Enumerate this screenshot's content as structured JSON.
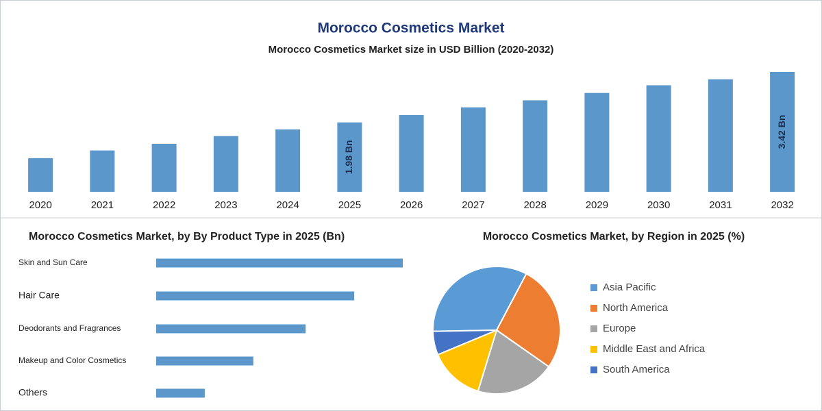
{
  "chart_data": [
    {
      "type": "bar",
      "title": "Morocco Cosmetics Market",
      "subtitle": "Morocco Cosmetics Market size in USD Billion (2020-2032)",
      "categories": [
        "2020",
        "2021",
        "2022",
        "2023",
        "2024",
        "2025",
        "2026",
        "2027",
        "2028",
        "2029",
        "2030",
        "2031",
        "2032"
      ],
      "values": [
        0.96,
        1.18,
        1.37,
        1.59,
        1.78,
        1.98,
        2.19,
        2.41,
        2.61,
        2.82,
        3.04,
        3.21,
        3.42
      ],
      "value_labels": [
        null,
        null,
        null,
        null,
        null,
        "1.98 Bn",
        null,
        null,
        null,
        null,
        null,
        null,
        "3.42 Bn"
      ],
      "color": "#5b97cb"
    },
    {
      "type": "hbar",
      "title": "Morocco Cosmetics Market, by By Product Type in 2025 (Bn)",
      "categories": [
        "Skin and Sun Care",
        "Hair Care",
        "Deodorants and Fragrances",
        "Makeup and Color Cosmetics",
        "Others"
      ],
      "values": [
        0.66,
        0.53,
        0.4,
        0.26,
        0.13
      ],
      "color": "#5b97cb"
    },
    {
      "type": "pie",
      "title": "Morocco Cosmetics Market, by Region in 2025 (%)",
      "categories": [
        "Asia Pacific",
        "North America",
        "Europe",
        "Middle East and Africa",
        "South America"
      ],
      "values": [
        33,
        27,
        20,
        14,
        6
      ],
      "colors": [
        "#5b9bd5",
        "#ed7d31",
        "#a5a5a5",
        "#ffc000",
        "#4472c4"
      ]
    }
  ]
}
